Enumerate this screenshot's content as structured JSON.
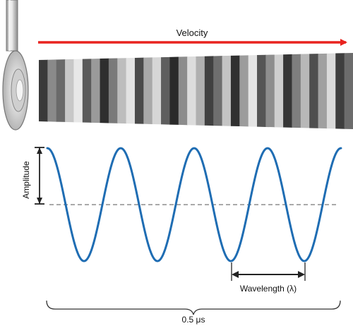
{
  "labels": {
    "velocity": "Velocity",
    "amplitude": "Amplitude",
    "wavelength": "Wavelength (λ)",
    "duration": "0.5 μs"
  },
  "colors": {
    "velocity_arrow": "#e8231f",
    "wave": "#1f6db3",
    "bracket": "#222222",
    "baseline": "#555555"
  },
  "icons": {
    "transducer": "ultrasound-transducer-icon"
  },
  "wave": {
    "cycles": 4
  },
  "pressure_bands": [
    "#3a3a3a",
    "#8a8a8a",
    "#6a6a6a",
    "#c8c8c8",
    "#e8e8e8",
    "#5a5a5a",
    "#9a9a9a",
    "#2e2e2e",
    "#7a7a7a",
    "#bdbdbd",
    "#e2e2e2",
    "#4a4a4a",
    "#a8a8a8",
    "#d6d6d6",
    "#5e5e5e",
    "#2a2a2a",
    "#8c8c8c",
    "#dcdcdc",
    "#b0b0b0",
    "#404040",
    "#6e6e6e",
    "#c4c4c4",
    "#303030",
    "#9c9c9c",
    "#e4e4e4",
    "#555555",
    "#8e8e8e",
    "#cfcfcf",
    "#363636",
    "#7e7e7e",
    "#b8b8b8",
    "#4e4e4e",
    "#a0a0a0",
    "#dadada",
    "#3e3e3e",
    "#6c6c6c"
  ]
}
